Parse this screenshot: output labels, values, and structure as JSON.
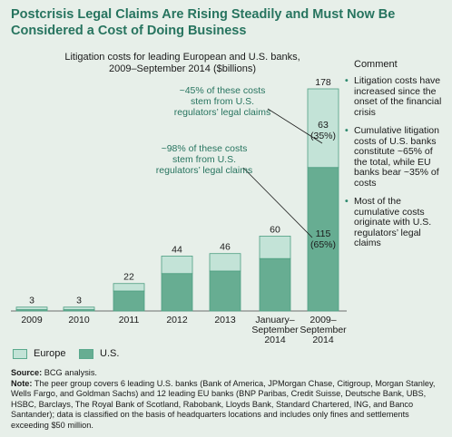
{
  "title": "Postcrisis Legal Claims Are Rising Steadily and Must Now Be Considered a Cost of Doing Business",
  "subtitle_line1": "Litigation costs for leading European and U.S. banks,",
  "subtitle_line2": "2009–September 2014 ($billions)",
  "comment_header": "Comment",
  "comments": [
    "Litigation costs have increased since the onset of the financial crisis",
    "Cumulative litigation costs of U.S. banks constitute ~65% of the total, while EU banks bear ~35% of costs",
    "Most of the cumulative costs originate with U.S. regulators’ legal claims"
  ],
  "annotations": {
    "top": [
      "~45% of these costs",
      "stem from U.S.",
      "regulators’ legal claims"
    ],
    "middle": [
      "~98% of these costs",
      "stem from U.S.",
      "regulators’ legal claims"
    ],
    "europe_value": "63",
    "europe_pct": "(35%)",
    "us_value": "115",
    "us_pct": "(65%)"
  },
  "colors": {
    "europe": "#c3e3d7",
    "us": "#67ad92",
    "border": "#4e9f82",
    "accent": "#2f8a6f",
    "background": "#e7efe9"
  },
  "chart_data": {
    "type": "bar",
    "stacked": true,
    "categories": [
      [
        "2009"
      ],
      [
        "2010"
      ],
      [
        "2011"
      ],
      [
        "2012"
      ],
      [
        "2013"
      ],
      [
        "January–",
        "September",
        "2014"
      ],
      [
        "2009–",
        "September",
        "2014"
      ]
    ],
    "totals": [
      3,
      3,
      22,
      44,
      46,
      60,
      178
    ],
    "series": [
      {
        "name": "U.S.",
        "values": [
          1,
          1,
          16,
          30,
          32,
          42,
          115
        ]
      },
      {
        "name": "Europe",
        "values": [
          2,
          2,
          6,
          14,
          14,
          18,
          63
        ]
      }
    ],
    "ylim": [
      0,
      178
    ],
    "legend": "bottom-left",
    "grid": false
  },
  "legend": {
    "europe_label": "Europe",
    "us_label": "U.S."
  },
  "source_label": "Source:",
  "source_text": " BCG analysis.",
  "note_label": "Note:",
  "note_text": " The peer group covers 6 leading U.S. banks (Bank of America, JPMorgan Chase, Citigroup, Morgan Stanley, Wells Fargo, and Goldman Sachs) and 12 leading EU banks (BNP Paribas, Credit Suisse, Deutsche Bank, UBS, HSBC, Barclays, The Royal Bank of Scotland, Rabobank, Lloyds Bank, Standard Chartered, ING, and Banco Santander); data is classified on the basis of headquarters locations and includes only fines and settlements exceeding $50 million."
}
